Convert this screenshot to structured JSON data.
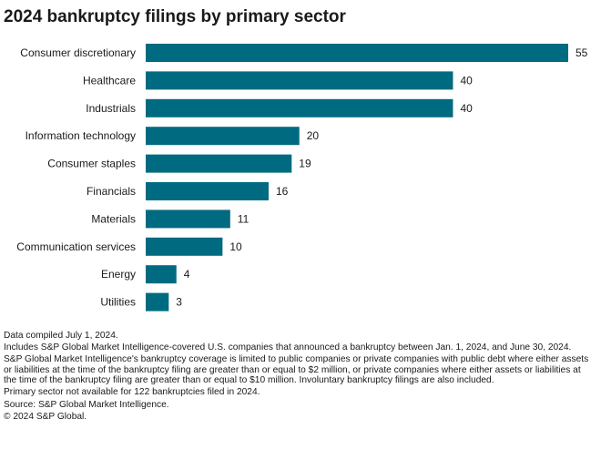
{
  "chart_data": {
    "type": "bar",
    "orientation": "horizontal",
    "title": "2024 bankruptcy filings by primary sector",
    "categories": [
      "Consumer discretionary",
      "Healthcare",
      "Industrials",
      "Information technology",
      "Consumer staples",
      "Financials",
      "Materials",
      "Communication services",
      "Energy",
      "Utilities"
    ],
    "values": [
      55,
      40,
      40,
      20,
      19,
      16,
      11,
      10,
      4,
      3
    ],
    "xlim": [
      0,
      55
    ],
    "bar_color": "#006b80",
    "grid": false,
    "legend": "none"
  },
  "notes": [
    "Data compiled July 1, 2024.",
    "Includes S&P Global Market Intelligence-covered U.S. companies that announced a bankruptcy between Jan. 1, 2024, and June 30, 2024.",
    "S&P Global Market Intelligence's bankruptcy coverage is limited to public companies or private companies with public debt where either assets or liabilities at the time of the bankruptcy filing are greater than or equal to $2 million, or private companies where either assets or liabilities at the time of the bankruptcy filing are greater than or equal to $10 million. Involuntary bankruptcy filings are also included.",
    "Primary sector not available for 122 bankruptcies filed in 2024.",
    "Source: S&P Global Market Intelligence.",
    "© 2024 S&P Global."
  ]
}
